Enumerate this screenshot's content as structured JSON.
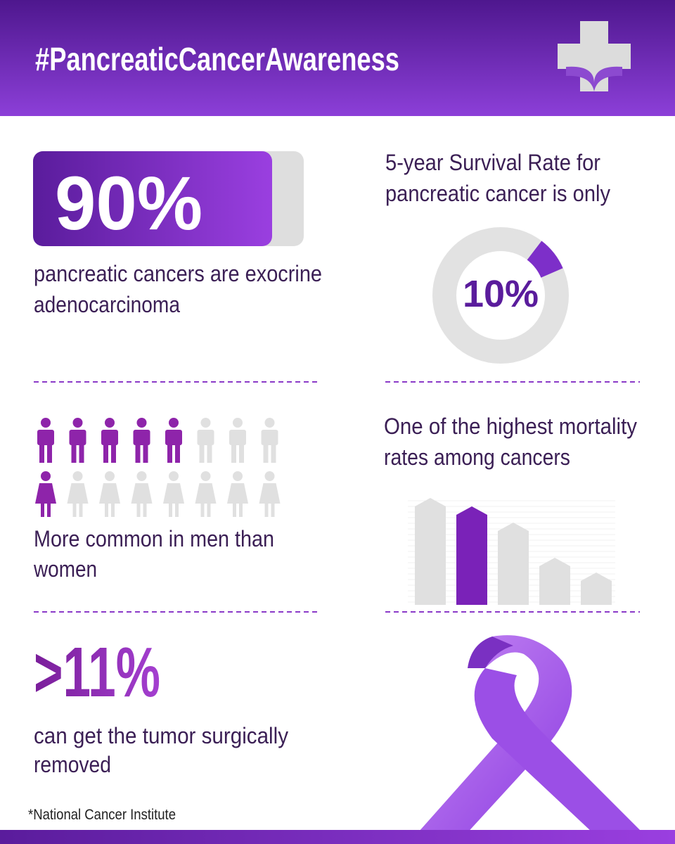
{
  "header": {
    "title": "#PancreaticCancerAwareness"
  },
  "sections": [
    {
      "stat": "90%",
      "caption_lines": [
        "pancreatic cancers are exocrine",
        "adenocarcinoma"
      ]
    },
    {
      "heading_lines": [
        "5-year Survival Rate for",
        "pancreatic cancer is only"
      ],
      "stat": "10%"
    },
    {
      "caption_lines": [
        "More common in men than",
        "women"
      ]
    },
    {
      "heading_lines": [
        "One of the highest mortality",
        "rates among cancers"
      ]
    },
    {
      "stat": ">11%",
      "caption_lines": [
        "can get the tumor surgically",
        "removed"
      ]
    }
  ],
  "footnote": "*National Cancer Institute"
}
